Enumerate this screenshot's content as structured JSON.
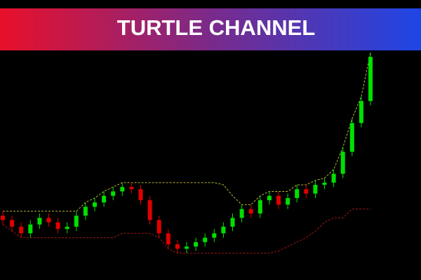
{
  "chart_data": {
    "type": "candlestick",
    "title": "TURTLE CHANNEL",
    "ylim": [
      0,
      100
    ],
    "up_color": "#00e000",
    "down_color": "#e00000",
    "open": [
      26,
      24,
      21,
      18,
      22,
      25,
      23,
      20,
      21,
      26,
      30,
      32,
      35,
      37,
      39,
      38,
      33,
      24,
      18,
      13,
      11,
      12,
      14,
      16,
      18,
      21,
      25,
      29,
      27,
      33,
      35,
      31,
      34,
      38,
      36,
      40,
      41,
      45,
      55,
      68,
      78
    ],
    "close": [
      24,
      21,
      18,
      22,
      25,
      23,
      20,
      21,
      26,
      30,
      32,
      35,
      37,
      39,
      38,
      33,
      24,
      18,
      13,
      11,
      12,
      14,
      16,
      18,
      21,
      25,
      29,
      27,
      33,
      35,
      31,
      34,
      38,
      36,
      40,
      41,
      45,
      55,
      68,
      78,
      98
    ],
    "high": [
      28,
      26,
      23,
      24,
      27,
      27,
      25,
      23,
      28,
      32,
      34,
      37,
      39,
      41,
      41,
      40,
      35,
      26,
      20,
      15,
      14,
      16,
      18,
      20,
      23,
      27,
      31,
      31,
      35,
      37,
      37,
      36,
      40,
      40,
      42,
      43,
      47,
      57,
      70,
      80,
      100
    ],
    "low": [
      22,
      19,
      16,
      16,
      20,
      21,
      18,
      18,
      19,
      24,
      28,
      30,
      33,
      35,
      36,
      31,
      22,
      16,
      11,
      9,
      9,
      10,
      12,
      14,
      16,
      19,
      23,
      25,
      25,
      31,
      29,
      29,
      32,
      34,
      34,
      38,
      39,
      43,
      53,
      66,
      76
    ],
    "lines": [
      {
        "color": "#b8b830",
        "values": [
          28,
          28,
          28,
          28,
          28,
          28,
          28,
          28,
          28,
          32,
          34,
          37,
          39,
          41,
          41,
          41,
          41,
          41,
          41,
          41,
          41,
          41,
          41,
          41,
          40,
          35,
          31,
          31,
          35,
          37,
          37,
          37,
          40,
          40,
          42,
          43,
          47,
          57,
          70,
          80,
          100
        ]
      },
      {
        "color": "#a01818",
        "values": [
          22,
          19,
          16,
          16,
          16,
          16,
          16,
          16,
          16,
          16,
          16,
          16,
          16,
          18,
          18,
          18,
          18,
          16,
          11,
          9,
          9,
          9,
          9,
          9,
          9,
          9,
          9,
          9,
          9,
          9,
          10,
          12,
          14,
          16,
          19,
          23,
          25,
          25,
          29,
          29,
          29
        ]
      }
    ]
  }
}
